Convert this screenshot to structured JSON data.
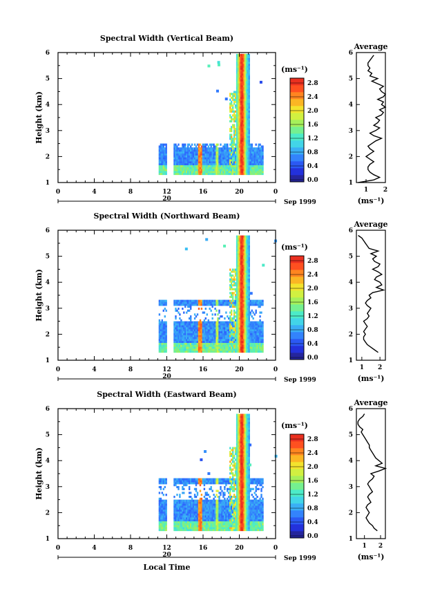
{
  "chart_data": [
    {
      "type": "heatmap",
      "title": "Spectral Width (Vertical Beam)",
      "ylabel": "Height (km)",
      "xticks": [
        "0",
        "4",
        "8",
        "12",
        "16",
        "20",
        "0"
      ],
      "yticks": [
        "1",
        "2",
        "3",
        "4",
        "5",
        "6"
      ],
      "date_label": "20",
      "date_right": "Sep 1999",
      "xlim": [
        0,
        24
      ],
      "ylim": [
        1,
        6
      ],
      "colorbar_unit": "(ms⁻¹)",
      "colorbar_ticks": [
        "2.8",
        "2.4",
        "2.0",
        "1.6",
        "1.2",
        "0.8",
        "0.4",
        "0.0"
      ],
      "colorbar_range": [
        0,
        3.0
      ],
      "average_profile": {
        "title": "Average",
        "xlabel": "(ms⁻¹)",
        "xticks": [
          "1",
          "2"
        ],
        "yticks": [
          "1",
          "2",
          "3",
          "4",
          "5",
          "6"
        ],
        "xlim": [
          0.5,
          2.0
        ],
        "ylim": [
          1,
          6
        ],
        "heights": [
          1.0,
          1.1,
          1.2,
          1.3,
          1.4,
          1.5,
          1.6,
          1.7,
          1.8,
          1.9,
          2.0,
          2.1,
          2.2,
          2.3,
          2.4,
          2.5,
          2.6,
          2.7,
          2.8,
          2.9,
          3.0,
          3.1,
          3.2,
          3.3,
          3.4,
          3.5,
          3.6,
          3.7,
          3.8,
          3.9,
          4.0,
          4.1,
          4.2,
          4.3,
          4.4,
          4.5,
          4.6,
          4.7,
          4.8,
          4.9,
          5.0,
          5.1,
          5.2,
          5.3,
          5.4,
          5.5,
          5.6,
          5.7,
          5.8,
          5.9
        ],
        "values": [
          0.6,
          1.4,
          1.7,
          1.4,
          1.2,
          1.1,
          1.1,
          1.2,
          1.4,
          1.2,
          1.0,
          1.2,
          1.4,
          1.2,
          1.1,
          1.3,
          1.5,
          1.8,
          1.4,
          1.2,
          1.5,
          1.7,
          1.4,
          1.6,
          1.7,
          1.5,
          1.8,
          1.9,
          1.7,
          2.0,
          1.8,
          1.9,
          1.6,
          1.9,
          2.0,
          1.8,
          1.7,
          1.9,
          1.6,
          1.3,
          1.6,
          1.2,
          1.3,
          1.1,
          1.2,
          1.1,
          1.1,
          1.2,
          1.3,
          1.4
        ]
      }
    },
    {
      "type": "heatmap",
      "title": "Spectral Width (Northward Beam)",
      "ylabel": "Height (km)",
      "xticks": [
        "0",
        "4",
        "8",
        "12",
        "16",
        "20",
        "0"
      ],
      "yticks": [
        "1",
        "2",
        "3",
        "4",
        "5",
        "6"
      ],
      "date_label": "20",
      "date_right": "Sep 1999",
      "xlim": [
        0,
        24
      ],
      "ylim": [
        1,
        6
      ],
      "colorbar_unit": "(ms⁻¹)",
      "colorbar_ticks": [
        "2.8",
        "2.4",
        "2.0",
        "1.6",
        "1.2",
        "0.8",
        "0.4",
        "0.0"
      ],
      "colorbar_range": [
        0,
        3.0
      ],
      "average_profile": {
        "title": "Average",
        "xlabel": "(ms⁻¹)",
        "xticks": [
          "1",
          "2"
        ],
        "yticks": [
          "1",
          "2",
          "3",
          "4",
          "5",
          "6"
        ],
        "xlim": [
          0.7,
          2.3
        ],
        "ylim": [
          1,
          6
        ],
        "heights": [
          1.3,
          1.4,
          1.5,
          1.6,
          1.7,
          1.8,
          1.9,
          2.0,
          2.1,
          2.2,
          2.3,
          2.4,
          2.5,
          2.6,
          2.7,
          2.8,
          2.9,
          3.0,
          3.1,
          3.2,
          3.3,
          3.4,
          3.5,
          3.6,
          3.7,
          3.8,
          3.9,
          4.0,
          4.1,
          4.2,
          4.3,
          4.4,
          4.5,
          4.6,
          4.7,
          4.8,
          4.9,
          5.0,
          5.1,
          5.2,
          5.3,
          5.4,
          5.5,
          5.6,
          5.7,
          5.8
        ],
        "values": [
          1.9,
          1.7,
          1.5,
          1.3,
          1.2,
          1.1,
          1.1,
          1.2,
          1.1,
          1.2,
          1.3,
          1.2,
          1.1,
          1.3,
          1.4,
          1.3,
          1.4,
          1.5,
          1.3,
          1.2,
          1.3,
          1.5,
          1.4,
          1.6,
          2.2,
          1.8,
          2.1,
          2.0,
          1.7,
          1.8,
          2.1,
          1.9,
          1.6,
          1.9,
          2.0,
          1.7,
          1.6,
          1.8,
          1.5,
          1.9,
          1.4,
          1.3,
          1.2,
          1.1,
          1.0,
          0.8
        ]
      }
    },
    {
      "type": "heatmap",
      "title": "Spectral Width (Eastward Beam)",
      "ylabel": "Height (km)",
      "xlabel": "Local Time",
      "xticks": [
        "0",
        "4",
        "8",
        "12",
        "16",
        "20",
        "0"
      ],
      "yticks": [
        "1",
        "2",
        "3",
        "4",
        "5",
        "6"
      ],
      "date_label": "20",
      "date_right": "Sep 1999",
      "xlim": [
        0,
        24
      ],
      "ylim": [
        1,
        6
      ],
      "colorbar_unit": "(ms⁻¹)",
      "colorbar_ticks": [
        "2.8",
        "2.4",
        "2.0",
        "1.6",
        "1.2",
        "0.8",
        "0.4",
        "0.0"
      ],
      "colorbar_range": [
        0,
        3.0
      ],
      "average_profile": {
        "title": "Average",
        "xlabel": "(ms⁻¹)",
        "xticks": [
          "1",
          "2"
        ],
        "yticks": [
          "1",
          "2",
          "3",
          "4",
          "5",
          "6"
        ],
        "xlim": [
          0.5,
          2.3
        ],
        "ylim": [
          1,
          6
        ],
        "heights": [
          1.3,
          1.4,
          1.5,
          1.6,
          1.7,
          1.8,
          1.9,
          2.0,
          2.1,
          2.2,
          2.3,
          2.4,
          2.5,
          2.6,
          2.7,
          2.8,
          2.9,
          3.0,
          3.1,
          3.2,
          3.3,
          3.4,
          3.5,
          3.6,
          3.7,
          3.8,
          3.9,
          4.0,
          4.1,
          4.2,
          4.3,
          4.4,
          4.5,
          4.6,
          4.7,
          4.8,
          4.9,
          5.0,
          5.1,
          5.2,
          5.3,
          5.4,
          5.5,
          5.6,
          5.7,
          5.8
        ],
        "values": [
          1.8,
          1.6,
          1.5,
          1.3,
          1.2,
          1.1,
          1.2,
          1.3,
          1.2,
          1.1,
          1.2,
          1.4,
          1.3,
          1.2,
          1.3,
          1.5,
          1.4,
          1.3,
          1.2,
          1.3,
          1.5,
          1.6,
          1.4,
          1.9,
          2.3,
          1.7,
          2.1,
          1.9,
          1.7,
          1.6,
          1.5,
          1.4,
          1.3,
          1.3,
          1.2,
          1.1,
          1.0,
          0.9,
          0.8,
          0.9,
          0.7,
          0.6,
          0.6,
          0.7,
          0.9,
          1.0
        ]
      }
    }
  ]
}
